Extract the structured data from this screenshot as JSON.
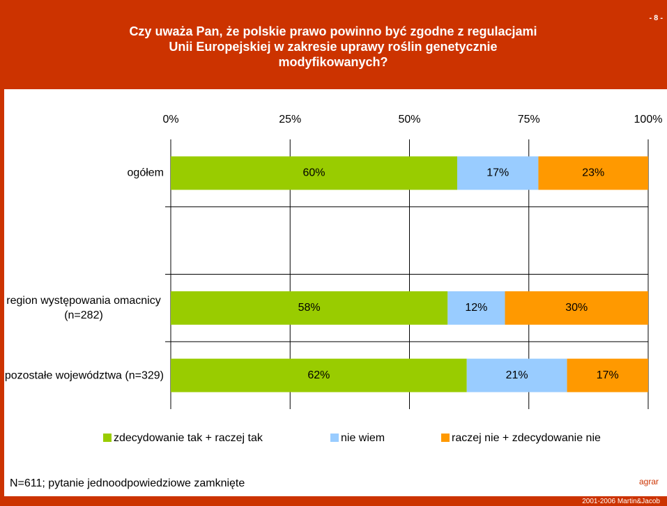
{
  "header": {
    "title": "Czy uważa Pan, że polskie prawo powinno być zgodne z regulacjami Unii Europejskiej w zakresie uprawy roślin genetycznie modyfikowanych?",
    "page_number": "- 8 -"
  },
  "chart_data": {
    "type": "stacked-barh",
    "categories": [
      "ogółem",
      null,
      "region występowania omacnicy (n=282)",
      "pozostałe województwa (n=329)"
    ],
    "series": [
      {
        "name": "zdecydowanie tak + raczej tak",
        "color": "#99cc00",
        "values": [
          60,
          null,
          58,
          62
        ],
        "value_labels": [
          "60%",
          null,
          "58%",
          "62%"
        ]
      },
      {
        "name": "nie wiem",
        "color": "#99ccff",
        "values": [
          17,
          null,
          12,
          21
        ],
        "value_labels": [
          "17%",
          null,
          "12%",
          "21%"
        ]
      },
      {
        "name": "raczej nie + zdecydowanie nie",
        "color": "#ff9900",
        "values": [
          23,
          null,
          30,
          17
        ],
        "value_labels": [
          "23%",
          null,
          "30%",
          "17%"
        ]
      }
    ],
    "xlim": [
      0,
      100
    ],
    "xticks": [
      {
        "value": 0,
        "label": "0%"
      },
      {
        "value": 25,
        "label": "25%"
      },
      {
        "value": 50,
        "label": "50%"
      },
      {
        "value": 75,
        "label": "75%"
      },
      {
        "value": 100,
        "label": "100%"
      }
    ],
    "grid": true,
    "legend": "bottom"
  },
  "footer": {
    "note": "N=611; pytanie jednoodpowiedziowe zamknięte",
    "brand": "agrar",
    "copyright": "2001-2006 Martin&Jacob"
  }
}
